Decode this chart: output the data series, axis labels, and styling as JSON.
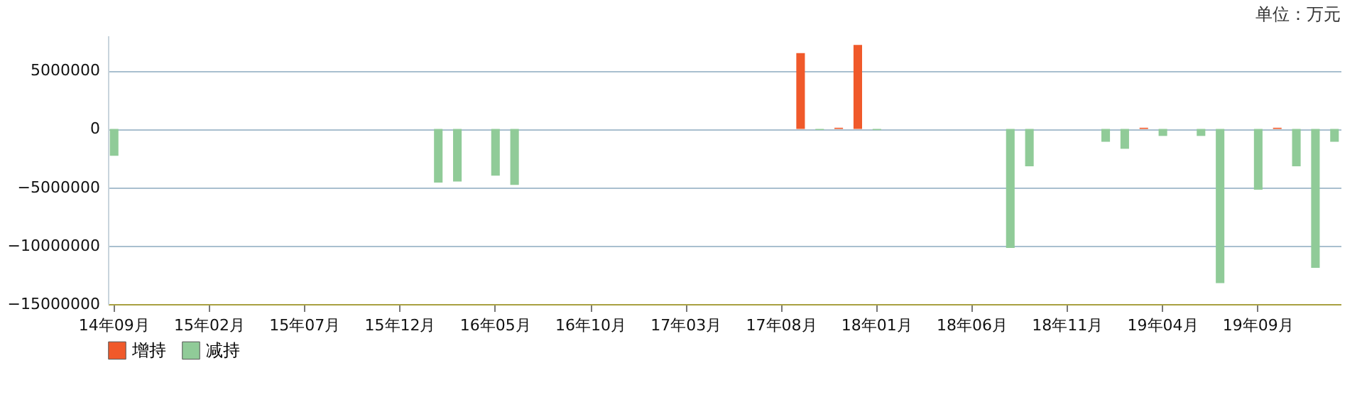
{
  "chart_data": {
    "type": "bar",
    "categories": [
      "14年09月",
      null,
      null,
      null,
      null,
      "15年02月",
      null,
      null,
      null,
      null,
      "15年07月",
      null,
      null,
      null,
      null,
      "15年12月",
      null,
      null,
      null,
      null,
      "16年05月",
      null,
      null,
      null,
      null,
      "16年10月",
      null,
      null,
      null,
      null,
      "17年03月",
      null,
      null,
      null,
      null,
      "17年08月",
      null,
      null,
      null,
      null,
      "18年01月",
      null,
      null,
      null,
      null,
      "18年06月",
      null,
      null,
      null,
      null,
      "18年11月",
      null,
      null,
      null,
      null,
      "19年04月",
      null,
      null,
      null,
      null,
      "19年09月",
      null,
      null,
      null,
      null
    ],
    "series": [
      {
        "name": "增持",
        "color": "#f0592a",
        "values": [
          null,
          null,
          null,
          null,
          null,
          null,
          null,
          null,
          null,
          null,
          null,
          null,
          null,
          null,
          null,
          null,
          null,
          null,
          null,
          null,
          null,
          null,
          null,
          null,
          null,
          null,
          null,
          null,
          null,
          null,
          null,
          null,
          null,
          null,
          null,
          null,
          6500000,
          null,
          100000,
          7200000,
          null,
          null,
          null,
          null,
          null,
          null,
          null,
          null,
          null,
          null,
          null,
          null,
          null,
          null,
          100000,
          null,
          null,
          null,
          null,
          null,
          null,
          100000,
          null,
          null,
          null
        ]
      },
      {
        "name": "减持",
        "color": "#90cb98",
        "values": [
          -2300000,
          null,
          null,
          null,
          null,
          null,
          null,
          null,
          null,
          null,
          null,
          null,
          null,
          null,
          null,
          null,
          null,
          -4600000,
          -4500000,
          null,
          -4000000,
          -4800000,
          null,
          null,
          null,
          null,
          null,
          null,
          null,
          null,
          null,
          null,
          null,
          null,
          null,
          null,
          null,
          -100000,
          null,
          null,
          -100000,
          null,
          null,
          null,
          null,
          null,
          null,
          -10200000,
          -3200000,
          null,
          null,
          null,
          -1100000,
          -1700000,
          null,
          -600000,
          null,
          -600000,
          -13200000,
          null,
          -5200000,
          null,
          -3200000,
          -11900000,
          -1100000
        ]
      }
    ],
    "ylim": [
      -15000000,
      8000000
    ],
    "yticks": [
      -15000000,
      -10000000,
      -5000000,
      0,
      5000000
    ],
    "grid": "y",
    "legend": "bottom",
    "annotations": [
      "单位：万元"
    ]
  }
}
